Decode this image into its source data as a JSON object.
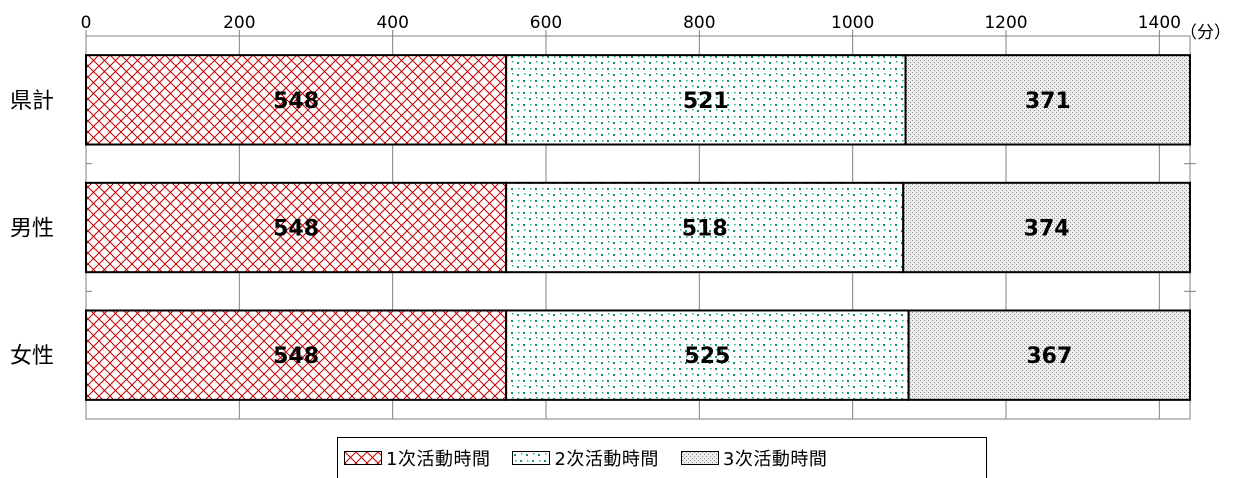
{
  "chart_data": {
    "type": "bar",
    "orientation": "horizontal",
    "stacked": true,
    "categories": [
      "県計",
      "男性",
      "女性"
    ],
    "series": [
      {
        "name": "1次活動時間",
        "values": [
          548,
          548,
          548
        ],
        "color": "#c00000",
        "pattern": "crosshatch"
      },
      {
        "name": "2次活動時間",
        "values": [
          521,
          518,
          525
        ],
        "color": "#009966",
        "pattern": "dots"
      },
      {
        "name": "3次活動時間",
        "values": [
          371,
          374,
          367
        ],
        "color": "#999999",
        "pattern": "fine-dots"
      }
    ],
    "xticks": [
      "0",
      "200",
      "400",
      "600",
      "800",
      "1000",
      "1200",
      "1400"
    ],
    "xlim": [
      0,
      1440
    ],
    "unit": "（分）",
    "grid": "vertical",
    "legend_position": "bottom"
  }
}
